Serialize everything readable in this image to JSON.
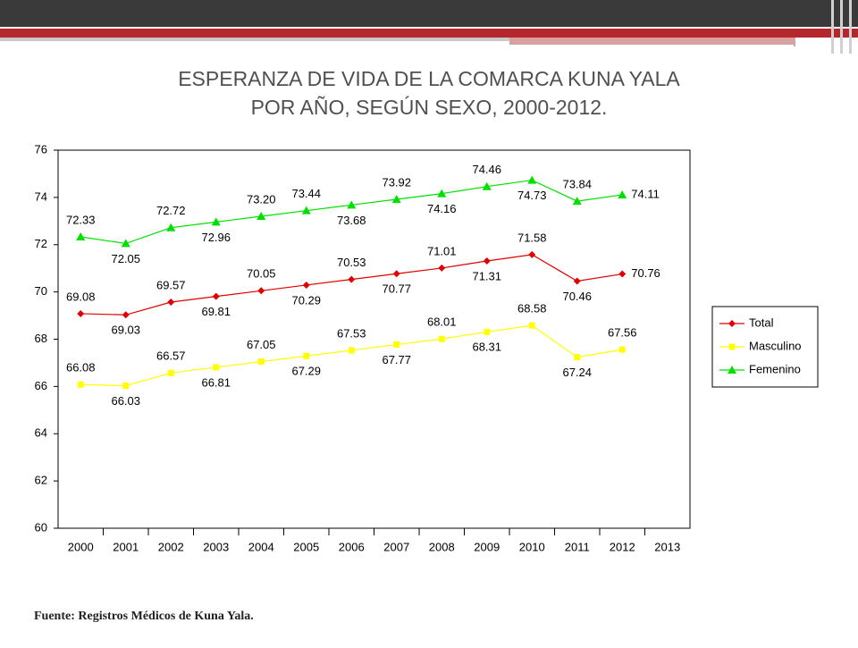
{
  "chart_data": {
    "type": "line",
    "title": "ESPERANZA DE VIDA DE LA COMARCA KUNA YALA",
    "subtitle": "POR AÑO, SEGÚN SEXO, 2000-2012.",
    "source": "Fuente: Registros Médicos de Kuna Yala.",
    "categories": [
      "2000",
      "2001",
      "2002",
      "2003",
      "2004",
      "2005",
      "2006",
      "2007",
      "2008",
      "2009",
      "2010",
      "2011",
      "2012",
      "2013"
    ],
    "series": [
      {
        "name": "Total",
        "color": "#e00000",
        "marker": "diamond",
        "values": [
          69.08,
          69.03,
          69.57,
          69.81,
          70.05,
          70.29,
          70.53,
          70.77,
          71.01,
          71.31,
          71.58,
          70.46,
          70.76,
          null
        ],
        "value_labels": [
          "69.08",
          "69.03",
          "69.57",
          "69.81",
          "70.05",
          "70.29",
          "70.53",
          "70.77",
          "71.01",
          "71.31",
          "71.58",
          "70.46",
          "70.76",
          null
        ]
      },
      {
        "name": "Masculino",
        "color": "#ffff00",
        "marker": "square",
        "values": [
          66.08,
          66.03,
          66.57,
          66.81,
          67.05,
          67.29,
          67.53,
          67.77,
          68.01,
          68.31,
          68.58,
          67.24,
          67.56,
          null
        ],
        "value_labels": [
          "66.08",
          "66.03",
          "66.57",
          "66.81",
          "67.05",
          "67.29",
          "67.53",
          "67.77",
          "68.01",
          "68.31",
          "68.58",
          "67.24",
          "67.56",
          null
        ]
      },
      {
        "name": "Femenino",
        "color": "#00e000",
        "marker": "triangle",
        "values": [
          72.33,
          72.05,
          72.72,
          72.96,
          73.2,
          73.44,
          73.68,
          73.92,
          74.16,
          74.46,
          74.73,
          73.84,
          74.11,
          null
        ],
        "value_labels": [
          "72.33",
          "72.05",
          "72.72",
          "72.96",
          "73.20",
          "73.44",
          "73.68",
          "73.92",
          "74.16",
          "74.46",
          "74.73",
          "73.84",
          "74.11",
          null
        ]
      }
    ],
    "ylim": [
      60,
      76
    ],
    "yticks": [
      60,
      62,
      64,
      66,
      68,
      70,
      72,
      74,
      76
    ],
    "grid": false,
    "legend": "right"
  }
}
